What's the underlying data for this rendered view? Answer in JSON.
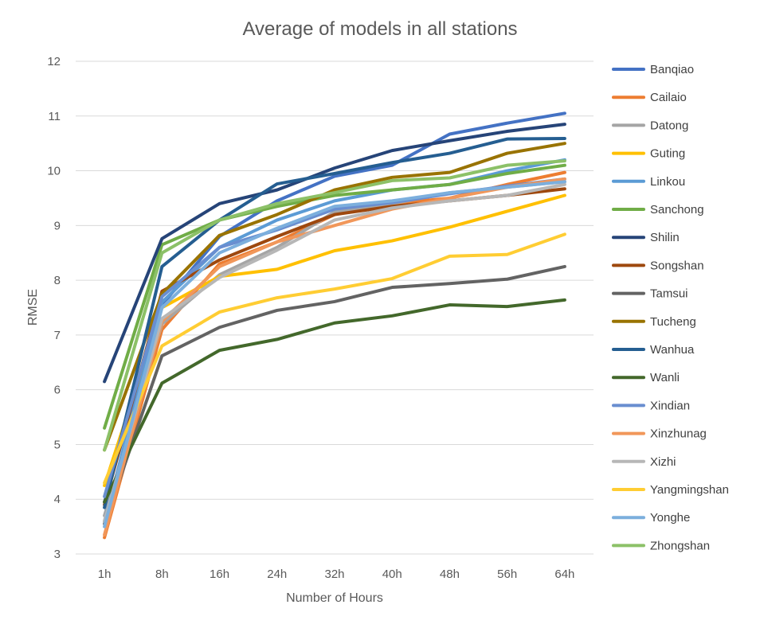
{
  "chart_data": {
    "type": "line",
    "title": "Average of models in all stations",
    "xlabel": "Number of Hours",
    "ylabel": "RMSE",
    "ylim": [
      3,
      12
    ],
    "yticks": [
      3,
      4,
      5,
      6,
      7,
      8,
      9,
      10,
      11,
      12
    ],
    "grid": true,
    "legend_position": "right",
    "categories": [
      "1h",
      "8h",
      "16h",
      "24h",
      "32h",
      "40h",
      "48h",
      "56h",
      "64h"
    ],
    "series": [
      {
        "name": "Banqiao",
        "color": "#4472C4",
        "values": [
          3.95,
          7.55,
          8.8,
          9.45,
          9.9,
          10.1,
          10.67,
          10.87,
          11.05
        ]
      },
      {
        "name": "Cailaio",
        "color": "#ED7D31",
        "values": [
          3.3,
          7.1,
          8.3,
          8.7,
          9.2,
          9.4,
          9.5,
          9.75,
          9.97
        ]
      },
      {
        "name": "Datong",
        "color": "#A5A5A5",
        "values": [
          3.7,
          7.2,
          8.1,
          8.6,
          9.25,
          9.4,
          9.6,
          9.7,
          9.8
        ]
      },
      {
        "name": "Guting",
        "color": "#FFC000",
        "values": [
          4.25,
          7.5,
          8.07,
          8.2,
          8.54,
          8.72,
          8.97,
          9.26,
          9.55
        ]
      },
      {
        "name": "Linkou",
        "color": "#5B9BD5",
        "values": [
          3.6,
          7.6,
          8.6,
          9.1,
          9.45,
          9.65,
          9.75,
          10.0,
          10.2
        ]
      },
      {
        "name": "Sanchong",
        "color": "#70AD47",
        "values": [
          5.3,
          8.65,
          9.1,
          9.35,
          9.55,
          9.65,
          9.75,
          9.95,
          10.1
        ]
      },
      {
        "name": "Shilin",
        "color": "#264478",
        "values": [
          6.15,
          8.76,
          9.4,
          9.65,
          10.05,
          10.37,
          10.55,
          10.72,
          10.85
        ]
      },
      {
        "name": "Songshan",
        "color": "#9E480E",
        "values": [
          3.9,
          7.8,
          8.37,
          8.8,
          9.2,
          9.35,
          9.45,
          9.55,
          9.67
        ]
      },
      {
        "name": "Tamsui",
        "color": "#636363",
        "values": [
          3.55,
          6.62,
          7.14,
          7.45,
          7.61,
          7.87,
          7.94,
          8.02,
          8.25
        ]
      },
      {
        "name": "Tucheng",
        "color": "#997300",
        "values": [
          4.9,
          7.75,
          8.82,
          9.2,
          9.65,
          9.88,
          9.97,
          10.32,
          10.5
        ]
      },
      {
        "name": "Wanhua",
        "color": "#255E91",
        "values": [
          3.85,
          8.25,
          9.1,
          9.76,
          9.95,
          10.15,
          10.32,
          10.58,
          10.59
        ]
      },
      {
        "name": "Wanli",
        "color": "#43682B",
        "values": [
          3.95,
          6.12,
          6.72,
          6.92,
          7.22,
          7.35,
          7.55,
          7.52,
          7.64
        ]
      },
      {
        "name": "Xindian",
        "color": "#698ED0",
        "values": [
          4.05,
          7.7,
          8.6,
          8.92,
          9.3,
          9.42,
          9.58,
          9.72,
          9.85
        ]
      },
      {
        "name": "Xinzhunag",
        "color": "#F1975A",
        "values": [
          3.35,
          7.25,
          8.25,
          8.7,
          9.0,
          9.3,
          9.5,
          9.7,
          9.85
        ]
      },
      {
        "name": "Xizhi",
        "color": "#B7B7B7",
        "values": [
          3.6,
          7.3,
          8.05,
          8.55,
          9.1,
          9.32,
          9.45,
          9.55,
          9.75
        ]
      },
      {
        "name": "Yangmingshan",
        "color": "#FFCD33",
        "values": [
          4.3,
          6.8,
          7.42,
          7.68,
          7.84,
          8.03,
          8.44,
          8.47,
          8.84
        ]
      },
      {
        "name": "Yonghe",
        "color": "#7CAFDD",
        "values": [
          3.5,
          7.5,
          8.5,
          8.95,
          9.35,
          9.45,
          9.6,
          9.7,
          9.8
        ]
      },
      {
        "name": "Zhongshan",
        "color": "#8CC168",
        "values": [
          4.9,
          8.5,
          9.1,
          9.4,
          9.6,
          9.82,
          9.87,
          10.1,
          10.18
        ]
      }
    ]
  }
}
